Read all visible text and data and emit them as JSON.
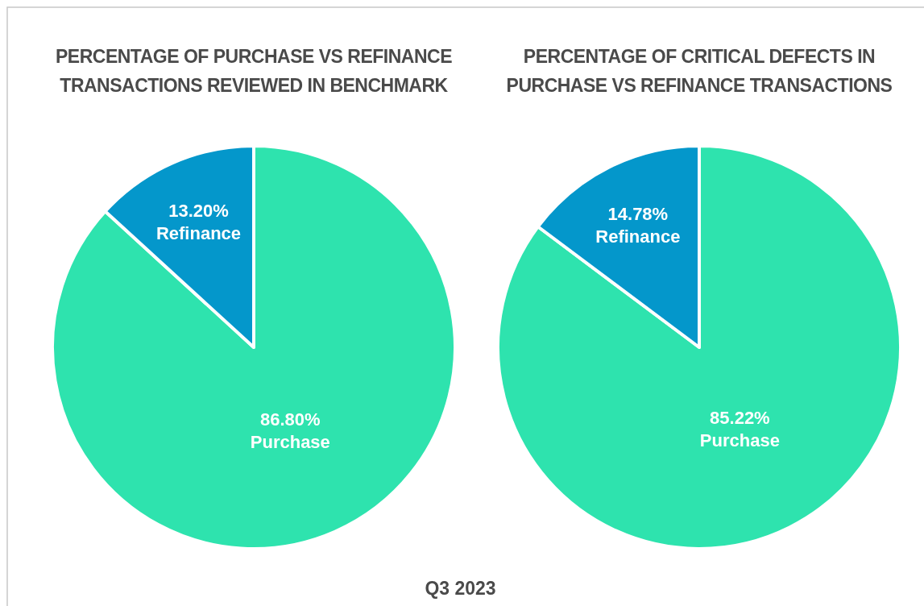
{
  "chart_data": [
    {
      "type": "pie",
      "title": "PERCENTAGE OF PURCHASE VS REFINANCE\nTRANSACTIONS REVIEWED IN BENCHMARK",
      "categories": [
        "Purchase",
        "Refinance"
      ],
      "values": [
        86.8,
        13.2
      ],
      "value_labels": [
        "86.80%",
        "13.20%"
      ],
      "colors": [
        "#2ee3ae",
        "#0497cb"
      ],
      "annotations": [
        "Q3 2023"
      ]
    },
    {
      "type": "pie",
      "title": "PERCENTAGE OF CRITICAL DEFECTS IN\nPURCHASE VS REFINANCE TRANSACTIONS",
      "categories": [
        "Purchase",
        "Refinance"
      ],
      "values": [
        85.22,
        14.78
      ],
      "value_labels": [
        "85.22%",
        "14.78%"
      ],
      "colors": [
        "#2ee3ae",
        "#0497cb"
      ]
    }
  ]
}
